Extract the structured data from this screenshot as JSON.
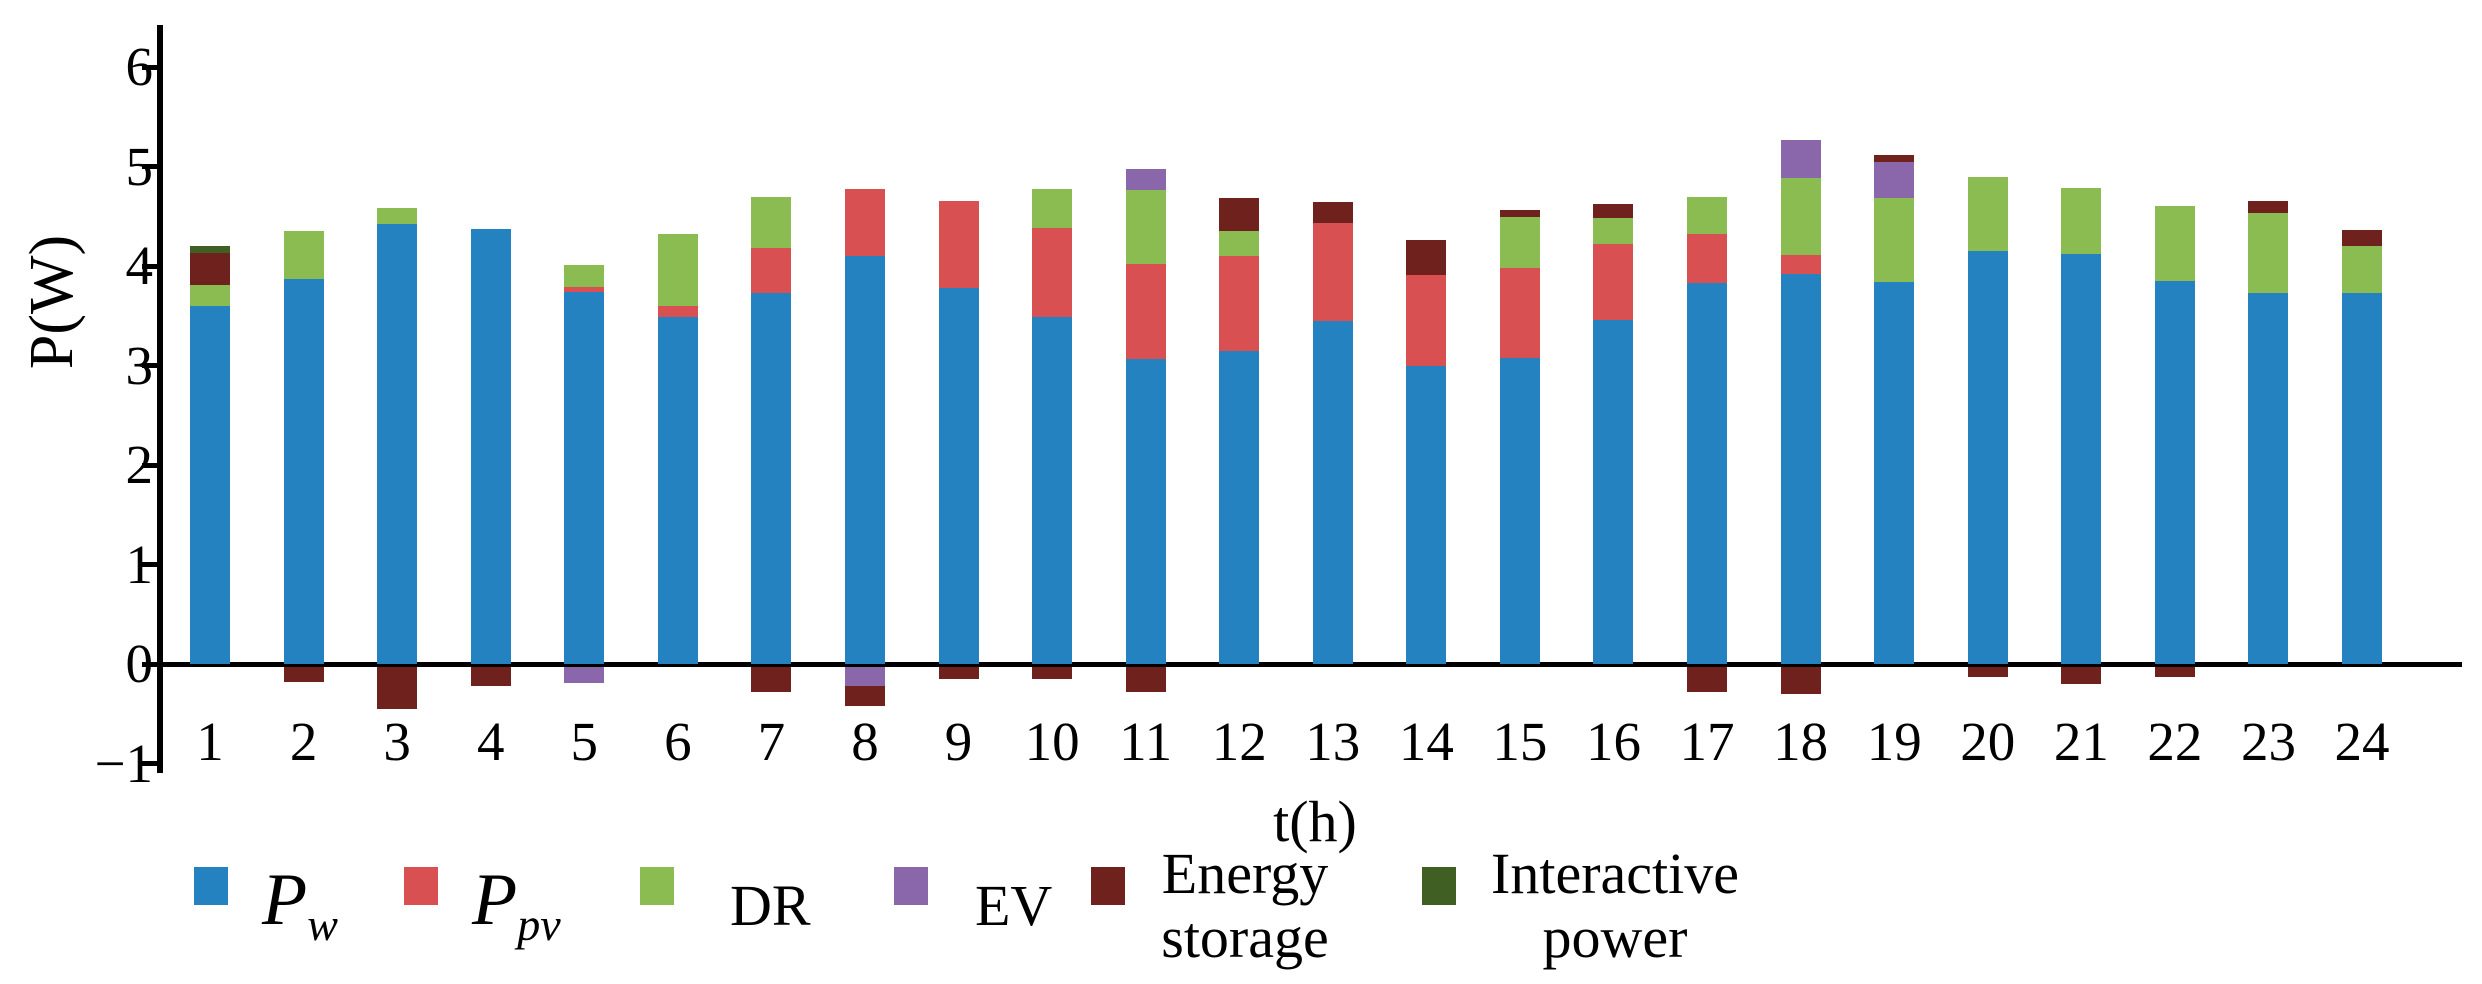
{
  "axes": {
    "ylabel": "P(W)",
    "xlabel": "t(h)",
    "ytick_labels": [
      "6",
      "5",
      "4",
      "3",
      "2",
      "1",
      "0",
      "−1"
    ]
  },
  "legend": {
    "items": [
      {
        "main": "P",
        "sub": "w"
      },
      {
        "main": "P",
        "sub": "pv"
      },
      {
        "label": "DR"
      },
      {
        "label": "EV"
      },
      {
        "line1": "Energy",
        "line2": "storage"
      },
      {
        "line1": "Interactive",
        "line2": "power"
      }
    ]
  },
  "chart_data": {
    "type": "bar",
    "stacked": true,
    "title": "",
    "xlabel": "t(h)",
    "ylabel": "P(W)",
    "ylim": [
      -1,
      6
    ],
    "yticks": [
      6,
      5,
      4,
      3,
      2,
      1,
      0,
      -1
    ],
    "grid": false,
    "legend_position": "bottom",
    "categories": [
      1,
      2,
      3,
      4,
      5,
      6,
      7,
      8,
      9,
      10,
      11,
      12,
      13,
      14,
      15,
      16,
      17,
      18,
      19,
      20,
      21,
      22,
      23,
      24
    ],
    "series": [
      {
        "name": "Pw",
        "color": "#2382bf",
        "values": [
          3.6,
          3.87,
          4.42,
          4.37,
          3.74,
          3.49,
          3.73,
          4.1,
          3.78,
          3.49,
          3.07,
          3.15,
          3.45,
          2.99,
          3.08,
          3.46,
          3.83,
          3.92,
          3.84,
          4.15,
          4.12,
          3.85,
          3.73,
          3.73
        ]
      },
      {
        "name": "Ppv",
        "color": "#d95052",
        "values": [
          0,
          0,
          0,
          0,
          0.05,
          0.11,
          0.45,
          0.67,
          0.87,
          0.89,
          0.95,
          0.95,
          0.98,
          0.92,
          0.9,
          0.76,
          0.49,
          0.19,
          0,
          0,
          0,
          0,
          0,
          0
        ]
      },
      {
        "name": "DR",
        "color": "#8abc51",
        "values": [
          0.21,
          0.48,
          0.16,
          0,
          0.22,
          0.72,
          0.51,
          0,
          0,
          0.39,
          0.74,
          0.25,
          0,
          0,
          0.51,
          0.26,
          0.37,
          0.77,
          0.84,
          0.74,
          0.66,
          0.75,
          0.8,
          0.47
        ]
      },
      {
        "name": "EV",
        "color": "#8a67aa",
        "values": [
          0,
          0,
          0,
          0,
          0,
          0,
          0,
          0,
          0,
          0,
          0.21,
          0,
          0,
          0,
          0,
          0,
          0,
          0.39,
          0.37,
          0,
          0,
          0,
          0,
          0
        ]
      },
      {
        "name": "Energy storage",
        "color": "#6e211d",
        "values": [
          0.32,
          0,
          0,
          0,
          0,
          0,
          0,
          0,
          0,
          0,
          0,
          0.33,
          0.21,
          0.35,
          0.07,
          0.14,
          0,
          0,
          0.07,
          0,
          0,
          0,
          0.12,
          0.16
        ]
      },
      {
        "name": "Interactive power",
        "color": "#3f5f23",
        "values": [
          0.07,
          0,
          0,
          0,
          0,
          0,
          0,
          0,
          0,
          0,
          0,
          0,
          0,
          0,
          0,
          0,
          0,
          0,
          0,
          0,
          0,
          0,
          0,
          0
        ]
      }
    ],
    "negative_series": [
      {
        "name": "EV",
        "color": "#8a67aa",
        "values": [
          0,
          0,
          0,
          0,
          -0.16,
          0,
          0,
          -0.19,
          0,
          0,
          0,
          0,
          0,
          0,
          0,
          0,
          0,
          0,
          0,
          0,
          0,
          0,
          0,
          0
        ]
      },
      {
        "name": "Energy storage",
        "color": "#6e211d",
        "values": [
          0,
          -0.15,
          -0.42,
          -0.19,
          0,
          0,
          -0.25,
          -0.2,
          -0.12,
          -0.12,
          -0.25,
          0,
          0,
          0,
          0,
          0,
          -0.25,
          -0.27,
          0,
          -0.1,
          -0.17,
          -0.1,
          0,
          0
        ]
      }
    ]
  }
}
